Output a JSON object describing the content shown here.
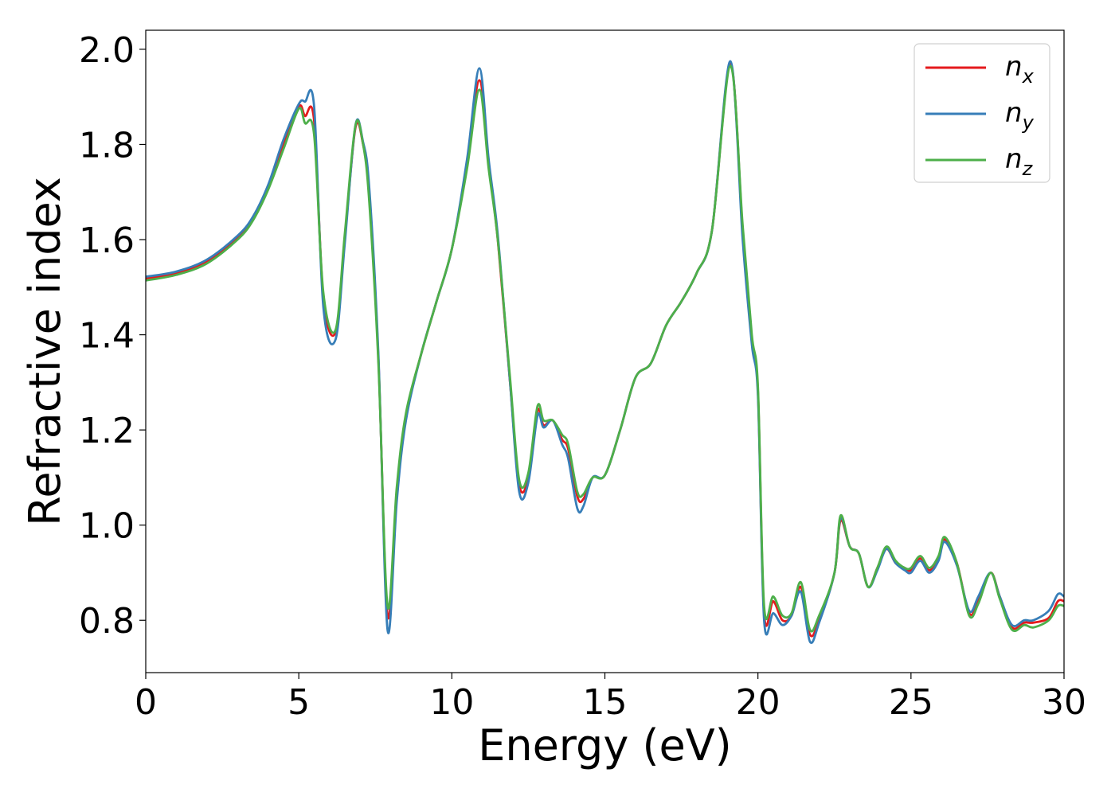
{
  "chart_data": {
    "type": "line",
    "title": "",
    "xlabel": "Energy (eV)",
    "ylabel": "Refractive index",
    "xlim": [
      0,
      30
    ],
    "ylim": [
      0.69,
      2.04
    ],
    "xticks": [
      "0",
      "5",
      "10",
      "15",
      "20",
      "25",
      "30"
    ],
    "xtick_values": [
      0,
      5,
      10,
      15,
      20,
      25,
      30
    ],
    "yticks": [
      "0.8",
      "1.0",
      "1.2",
      "1.4",
      "1.6",
      "1.8",
      "2.0"
    ],
    "ytick_values": [
      0.8,
      1.0,
      1.2,
      1.4,
      1.6,
      1.8,
      2.0
    ],
    "grid": false,
    "legend_position": "top-right",
    "series": [
      {
        "name": "n",
        "subscript": "x",
        "color": "#e41a1c",
        "x": [
          0,
          1,
          2,
          3,
          3.5,
          4,
          4.5,
          5.0,
          5.2,
          5.5,
          5.8,
          6.2,
          6.5,
          6.85,
          7.1,
          7.3,
          7.6,
          7.9,
          8.2,
          8.5,
          9.0,
          9.5,
          10.0,
          10.5,
          10.9,
          11.2,
          11.5,
          11.9,
          12.2,
          12.5,
          12.8,
          13.0,
          13.3,
          13.6,
          13.8,
          14.1,
          14.3,
          14.6,
          15.0,
          15.5,
          16.0,
          16.5,
          17.0,
          17.5,
          18.0,
          18.5,
          19.1,
          19.5,
          19.8,
          20.0,
          20.2,
          20.5,
          20.8,
          21.1,
          21.4,
          21.7,
          22.0,
          22.5,
          22.7,
          23.0,
          23.3,
          23.6,
          23.9,
          24.2,
          24.5,
          24.8,
          25.0,
          25.3,
          25.6,
          25.9,
          26.1,
          26.5,
          26.9,
          27.2,
          27.6,
          27.9,
          28.3,
          28.7,
          29.0,
          29.5,
          29.8,
          30.0
        ],
        "y": [
          1.518,
          1.53,
          1.555,
          1.605,
          1.645,
          1.71,
          1.8,
          1.88,
          1.86,
          1.85,
          1.48,
          1.405,
          1.6,
          1.835,
          1.8,
          1.7,
          1.35,
          0.81,
          1.07,
          1.23,
          1.36,
          1.47,
          1.58,
          1.76,
          1.935,
          1.76,
          1.6,
          1.3,
          1.085,
          1.1,
          1.24,
          1.21,
          1.22,
          1.18,
          1.16,
          1.06,
          1.055,
          1.1,
          1.105,
          1.2,
          1.31,
          1.34,
          1.42,
          1.47,
          1.53,
          1.62,
          1.97,
          1.62,
          1.39,
          1.28,
          0.815,
          0.84,
          0.8,
          0.81,
          0.87,
          0.77,
          0.8,
          0.9,
          1.01,
          0.955,
          0.94,
          0.87,
          0.91,
          0.95,
          0.92,
          0.91,
          0.905,
          0.93,
          0.905,
          0.93,
          0.97,
          0.92,
          0.815,
          0.84,
          0.9,
          0.85,
          0.785,
          0.795,
          0.795,
          0.805,
          0.84,
          0.84
        ]
      },
      {
        "name": "n",
        "subscript": "y",
        "color": "#377eb8",
        "x": [
          0,
          1,
          2,
          3,
          3.5,
          4,
          4.5,
          5.0,
          5.2,
          5.5,
          5.8,
          6.2,
          6.5,
          6.85,
          7.1,
          7.3,
          7.6,
          7.9,
          8.2,
          8.5,
          9.0,
          9.5,
          10.0,
          10.5,
          10.9,
          11.2,
          11.5,
          11.9,
          12.2,
          12.5,
          12.8,
          13.0,
          13.3,
          13.6,
          13.8,
          14.1,
          14.3,
          14.6,
          15.0,
          15.5,
          16.0,
          16.5,
          17.0,
          17.5,
          18.0,
          18.5,
          19.1,
          19.5,
          19.8,
          20.0,
          20.2,
          20.5,
          20.8,
          21.1,
          21.4,
          21.7,
          22.0,
          22.5,
          22.7,
          23.0,
          23.3,
          23.6,
          23.9,
          24.2,
          24.5,
          24.8,
          25.0,
          25.3,
          25.6,
          25.9,
          26.1,
          26.5,
          26.9,
          27.2,
          27.6,
          27.9,
          28.3,
          28.7,
          29.0,
          29.5,
          29.8,
          30.0
        ],
        "y": [
          1.522,
          1.533,
          1.558,
          1.608,
          1.648,
          1.715,
          1.81,
          1.885,
          1.89,
          1.88,
          1.46,
          1.39,
          1.59,
          1.84,
          1.805,
          1.71,
          1.36,
          0.78,
          1.05,
          1.22,
          1.36,
          1.47,
          1.58,
          1.77,
          1.96,
          1.77,
          1.61,
          1.3,
          1.07,
          1.09,
          1.23,
          1.205,
          1.22,
          1.17,
          1.14,
          1.035,
          1.04,
          1.1,
          1.105,
          1.2,
          1.31,
          1.34,
          1.42,
          1.47,
          1.53,
          1.62,
          1.975,
          1.6,
          1.38,
          1.27,
          0.8,
          0.815,
          0.79,
          0.81,
          0.86,
          0.755,
          0.795,
          0.9,
          1.015,
          0.955,
          0.94,
          0.87,
          0.905,
          0.95,
          0.92,
          0.905,
          0.9,
          0.925,
          0.9,
          0.925,
          0.965,
          0.915,
          0.82,
          0.85,
          0.9,
          0.85,
          0.79,
          0.8,
          0.8,
          0.82,
          0.855,
          0.85
        ]
      },
      {
        "name": "n",
        "subscript": "z",
        "color": "#4daf4a",
        "x": [
          0,
          1,
          2,
          3,
          3.5,
          4,
          4.5,
          5.0,
          5.2,
          5.5,
          5.8,
          6.2,
          6.5,
          6.85,
          7.1,
          7.3,
          7.6,
          7.9,
          8.2,
          8.5,
          9.0,
          9.5,
          10.0,
          10.5,
          10.9,
          11.2,
          11.5,
          11.9,
          12.2,
          12.5,
          12.8,
          13.0,
          13.3,
          13.6,
          13.8,
          14.1,
          14.3,
          14.6,
          15.0,
          15.5,
          16.0,
          16.5,
          17.0,
          17.5,
          18.0,
          18.5,
          19.1,
          19.5,
          19.8,
          20.0,
          20.2,
          20.5,
          20.8,
          21.1,
          21.4,
          21.7,
          22.0,
          22.5,
          22.7,
          23.0,
          23.3,
          23.6,
          23.9,
          24.2,
          24.5,
          24.8,
          25.0,
          25.3,
          25.6,
          25.9,
          26.1,
          26.5,
          26.9,
          27.2,
          27.6,
          27.9,
          28.3,
          28.7,
          29.0,
          29.5,
          29.8,
          30.0
        ],
        "y": [
          1.514,
          1.526,
          1.55,
          1.6,
          1.64,
          1.705,
          1.79,
          1.875,
          1.845,
          1.82,
          1.49,
          1.41,
          1.61,
          1.84,
          1.8,
          1.68,
          1.34,
          0.83,
          1.08,
          1.235,
          1.36,
          1.47,
          1.58,
          1.75,
          1.915,
          1.75,
          1.6,
          1.31,
          1.095,
          1.11,
          1.25,
          1.22,
          1.22,
          1.19,
          1.17,
          1.07,
          1.065,
          1.1,
          1.105,
          1.2,
          1.31,
          1.34,
          1.42,
          1.47,
          1.53,
          1.62,
          1.965,
          1.63,
          1.4,
          1.29,
          0.83,
          0.85,
          0.81,
          0.815,
          0.88,
          0.78,
          0.81,
          0.9,
          1.02,
          0.955,
          0.94,
          0.87,
          0.91,
          0.955,
          0.925,
          0.91,
          0.91,
          0.935,
          0.91,
          0.935,
          0.975,
          0.92,
          0.81,
          0.835,
          0.9,
          0.845,
          0.78,
          0.79,
          0.785,
          0.8,
          0.83,
          0.83
        ]
      }
    ]
  }
}
